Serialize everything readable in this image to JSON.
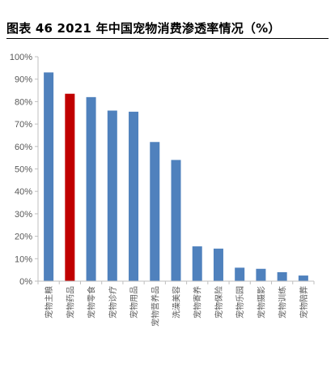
{
  "figure": {
    "title": "图表 46 2021 年中国宠物消费渗透率情况（%）"
  },
  "chart_data": {
    "type": "bar",
    "categories": [
      "宠物主粮",
      "宠物药品",
      "宠物零食",
      "宠物诊疗",
      "宠物用品",
      "宠物营养品",
      "洗澡美容",
      "宠物寄养",
      "宠物保险",
      "宠物乐园",
      "宠物摄影",
      "宠物训练",
      "宠物陪葬"
    ],
    "values": [
      93,
      83.5,
      82,
      76,
      75.5,
      62,
      54,
      15.5,
      14.5,
      6,
      5.5,
      4,
      2.5
    ],
    "ylim": [
      0,
      100
    ],
    "yticks": [
      0,
      10,
      20,
      30,
      40,
      50,
      60,
      70,
      80,
      90,
      100
    ],
    "ytick_suffix": "%",
    "grid": false,
    "legend": "none",
    "colors": {
      "default": "#4F81BD",
      "highlight": "#C00000",
      "axis": "#BFBFBF",
      "text": "#595959"
    },
    "highlight_index": 1
  }
}
